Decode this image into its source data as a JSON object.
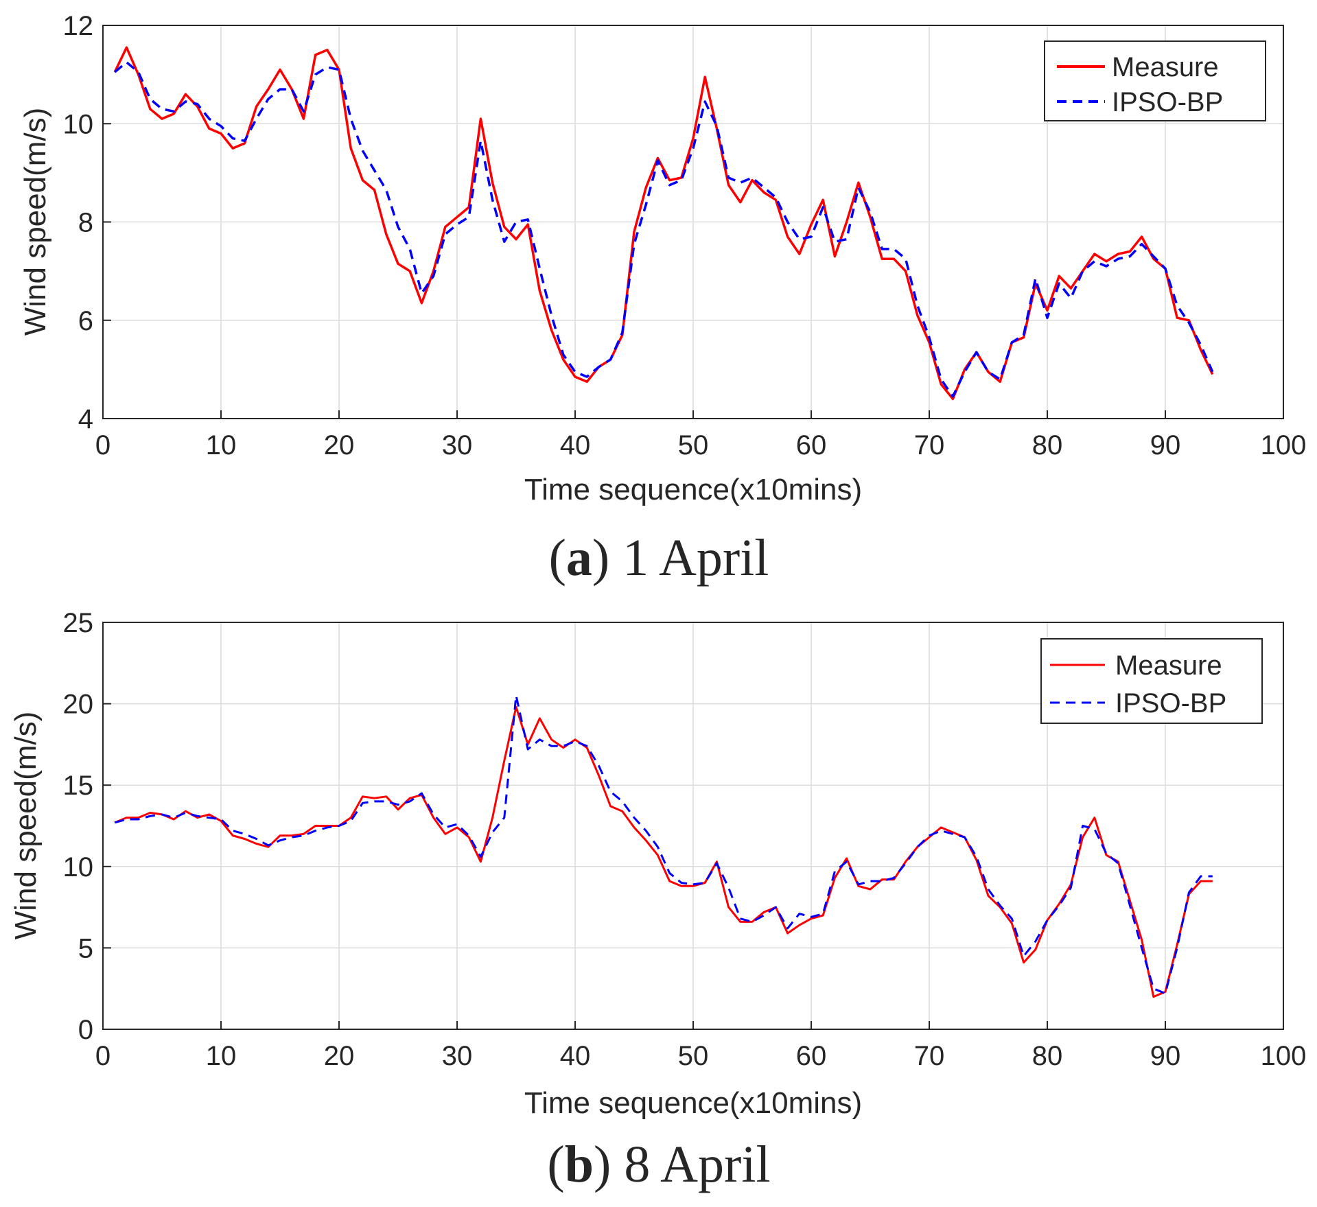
{
  "chart_data": [
    {
      "type": "line",
      "xlabel": "Time sequence(x10mins)",
      "ylabel": "Wind speed(m/s)",
      "xlim": [
        0,
        100
      ],
      "ylim": [
        4,
        12
      ],
      "xticks": [
        0,
        10,
        20,
        30,
        40,
        50,
        60,
        70,
        80,
        90,
        100
      ],
      "yticks": [
        4,
        6,
        8,
        10,
        12
      ],
      "grid": true,
      "legend_position": "top-right",
      "x": [
        1,
        2,
        3,
        4,
        5,
        6,
        7,
        8,
        9,
        10,
        11,
        12,
        13,
        14,
        15,
        16,
        17,
        18,
        19,
        20,
        21,
        22,
        23,
        24,
        25,
        26,
        27,
        28,
        29,
        30,
        31,
        32,
        33,
        34,
        35,
        36,
        37,
        38,
        39,
        40,
        41,
        42,
        43,
        44,
        45,
        46,
        47,
        48,
        49,
        50,
        51,
        52,
        53,
        54,
        55,
        56,
        57,
        58,
        59,
        60,
        61,
        62,
        63,
        64,
        65,
        66,
        67,
        68,
        69,
        70,
        71,
        72,
        73,
        74,
        75,
        76,
        77,
        78,
        79,
        80,
        81,
        82,
        83,
        84,
        85,
        86,
        87,
        88,
        89,
        90,
        91,
        92,
        93,
        94
      ],
      "series": [
        {
          "name": "Measure",
          "color": "#ff0000",
          "dash": "solid",
          "values": [
            11.05,
            11.55,
            11.0,
            10.3,
            10.1,
            10.2,
            10.6,
            10.35,
            9.9,
            9.8,
            9.5,
            9.6,
            10.35,
            10.7,
            11.1,
            10.7,
            10.1,
            11.4,
            11.5,
            11.1,
            9.5,
            8.85,
            8.65,
            7.75,
            7.15,
            7.0,
            6.35,
            7.0,
            7.9,
            8.1,
            8.3,
            10.1,
            8.8,
            7.9,
            7.65,
            7.95,
            6.6,
            5.8,
            5.2,
            4.85,
            4.75,
            5.05,
            5.2,
            5.7,
            7.8,
            8.7,
            9.3,
            8.85,
            8.9,
            9.7,
            10.95,
            9.9,
            8.75,
            8.4,
            8.85,
            8.6,
            8.45,
            7.7,
            7.35,
            7.95,
            8.45,
            7.3,
            8.0,
            8.8,
            8.1,
            7.25,
            7.25,
            7.0,
            6.1,
            5.55,
            4.7,
            4.4,
            5.0,
            5.35,
            4.95,
            4.75,
            5.55,
            5.65,
            6.75,
            6.2,
            6.9,
            6.65,
            7.0,
            7.35,
            7.2,
            7.35,
            7.4,
            7.7,
            7.25,
            7.05,
            6.05,
            6.0,
            5.4,
            4.9
          ]
        },
        {
          "name": "IPSO-BP",
          "color": "#0000ff",
          "dash": "dashed",
          "values": [
            11.05,
            11.25,
            11.05,
            10.5,
            10.3,
            10.25,
            10.45,
            10.4,
            10.1,
            9.95,
            9.7,
            9.65,
            10.1,
            10.5,
            10.7,
            10.7,
            10.25,
            11.0,
            11.15,
            11.1,
            10.1,
            9.45,
            9.05,
            8.65,
            7.9,
            7.45,
            6.55,
            6.9,
            7.75,
            7.95,
            8.1,
            9.65,
            8.45,
            7.6,
            8.0,
            8.05,
            7.05,
            6.1,
            5.3,
            4.95,
            4.85,
            5.05,
            5.2,
            5.75,
            7.55,
            8.35,
            9.25,
            8.75,
            8.85,
            9.5,
            10.45,
            9.95,
            8.9,
            8.8,
            8.9,
            8.7,
            8.5,
            8.0,
            7.65,
            7.7,
            8.3,
            7.6,
            7.65,
            8.7,
            8.2,
            7.45,
            7.45,
            7.25,
            6.3,
            5.65,
            4.8,
            4.45,
            4.95,
            5.35,
            4.95,
            4.8,
            5.55,
            5.7,
            6.85,
            6.05,
            6.75,
            6.45,
            7.0,
            7.2,
            7.1,
            7.25,
            7.3,
            7.55,
            7.3,
            7.05,
            6.3,
            5.95,
            5.5,
            4.95
          ]
        }
      ],
      "caption_label": "a",
      "caption_text": "1 April"
    },
    {
      "type": "line",
      "xlabel": "Time sequence(x10mins)",
      "ylabel": "Wind speed(m/s)",
      "xlim": [
        0,
        100
      ],
      "ylim": [
        0,
        25
      ],
      "xticks": [
        0,
        10,
        20,
        30,
        40,
        50,
        60,
        70,
        80,
        90,
        100
      ],
      "yticks": [
        0,
        5,
        10,
        15,
        20,
        25
      ],
      "grid": true,
      "legend_position": "top-right",
      "x": [
        1,
        2,
        3,
        4,
        5,
        6,
        7,
        8,
        9,
        10,
        11,
        12,
        13,
        14,
        15,
        16,
        17,
        18,
        19,
        20,
        21,
        22,
        23,
        24,
        25,
        26,
        27,
        28,
        29,
        30,
        31,
        32,
        33,
        34,
        35,
        36,
        37,
        38,
        39,
        40,
        41,
        42,
        43,
        44,
        45,
        46,
        47,
        48,
        49,
        50,
        51,
        52,
        53,
        54,
        55,
        56,
        57,
        58,
        59,
        60,
        61,
        62,
        63,
        64,
        65,
        66,
        67,
        68,
        69,
        70,
        71,
        72,
        73,
        74,
        75,
        76,
        77,
        78,
        79,
        80,
        81,
        82,
        83,
        84,
        85,
        86,
        87,
        88,
        89,
        90,
        91,
        92,
        93,
        94
      ],
      "series": [
        {
          "name": "Measure",
          "color": "#ff0000",
          "dash": "solid",
          "values": [
            12.7,
            13.0,
            13.0,
            13.3,
            13.2,
            12.9,
            13.4,
            13.0,
            13.2,
            12.8,
            11.9,
            11.7,
            11.4,
            11.2,
            11.9,
            11.9,
            12.0,
            12.5,
            12.5,
            12.5,
            13.0,
            14.3,
            14.2,
            14.3,
            13.5,
            14.2,
            14.4,
            13.0,
            12.0,
            12.4,
            11.8,
            10.3,
            13.0,
            16.5,
            19.8,
            17.5,
            19.1,
            17.8,
            17.3,
            17.8,
            17.3,
            15.6,
            13.7,
            13.4,
            12.4,
            11.6,
            10.7,
            9.1,
            8.8,
            8.8,
            9.0,
            10.3,
            7.5,
            6.6,
            6.6,
            7.2,
            7.5,
            5.9,
            6.4,
            6.8,
            7.0,
            9.3,
            10.5,
            8.8,
            8.6,
            9.2,
            9.2,
            10.3,
            11.2,
            11.8,
            12.4,
            12.1,
            11.8,
            10.4,
            8.2,
            7.5,
            6.5,
            4.1,
            4.9,
            6.7,
            7.7,
            8.9,
            11.8,
            13.0,
            10.7,
            10.3,
            7.9,
            5.5,
            2.0,
            2.3,
            5.2,
            8.3,
            9.1,
            9.1
          ]
        },
        {
          "name": "IPSO-BP",
          "color": "#0000ff",
          "dash": "dashed",
          "values": [
            12.7,
            12.9,
            12.9,
            13.1,
            13.2,
            13.0,
            13.3,
            13.1,
            13.0,
            12.9,
            12.2,
            12.0,
            11.7,
            11.3,
            11.6,
            11.8,
            11.9,
            12.2,
            12.4,
            12.5,
            12.8,
            13.9,
            14.0,
            14.0,
            13.8,
            14.0,
            14.5,
            13.2,
            12.4,
            12.6,
            11.9,
            10.6,
            12.1,
            13.0,
            20.5,
            17.2,
            17.8,
            17.4,
            17.4,
            17.7,
            17.4,
            16.2,
            14.6,
            14.0,
            13.0,
            12.2,
            11.2,
            9.6,
            9.0,
            8.9,
            9.0,
            10.2,
            8.7,
            6.8,
            6.6,
            7.0,
            7.5,
            6.2,
            7.1,
            6.9,
            7.1,
            9.7,
            10.3,
            8.9,
            9.1,
            9.1,
            9.3,
            10.2,
            11.2,
            11.9,
            12.2,
            12.0,
            11.8,
            10.6,
            8.6,
            7.6,
            6.8,
            4.5,
            5.4,
            6.7,
            7.6,
            8.7,
            12.5,
            12.3,
            10.8,
            10.2,
            7.6,
            5.0,
            2.5,
            2.2,
            5.0,
            8.4,
            9.4,
            9.4
          ]
        }
      ],
      "caption_label": "b",
      "caption_text": "8 April"
    }
  ]
}
